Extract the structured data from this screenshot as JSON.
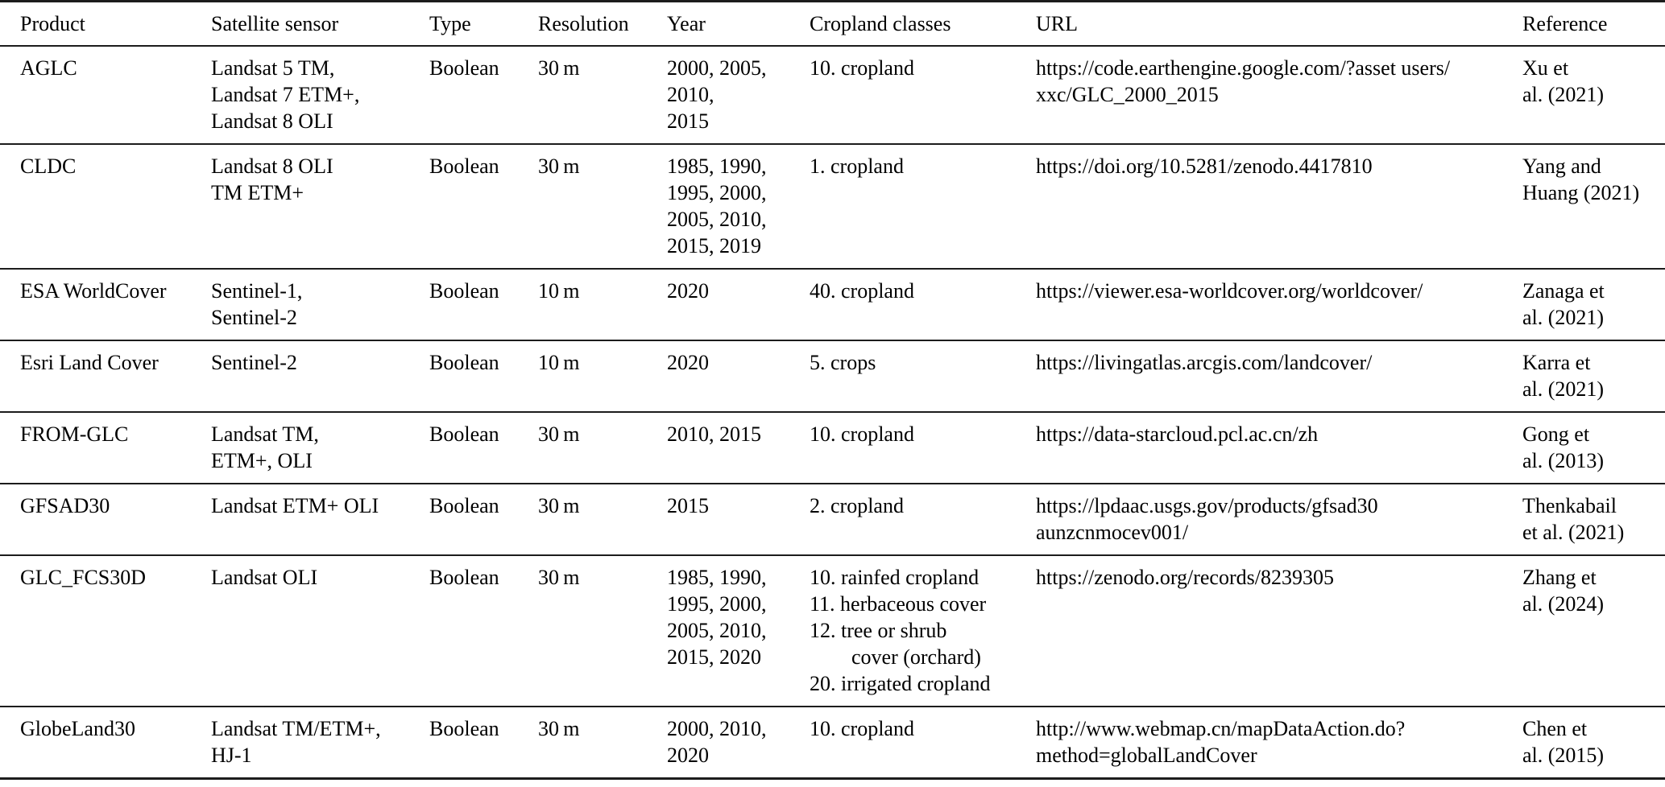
{
  "table": {
    "columns": [
      {
        "key": "product",
        "label": "Product"
      },
      {
        "key": "sensor",
        "label": "Satellite sensor"
      },
      {
        "key": "type",
        "label": "Type"
      },
      {
        "key": "resolution",
        "label": "Resolution"
      },
      {
        "key": "year",
        "label": "Year"
      },
      {
        "key": "classes",
        "label": "Cropland classes"
      },
      {
        "key": "url",
        "label": "URL"
      },
      {
        "key": "reference",
        "label": "Reference"
      }
    ],
    "rows": [
      {
        "product": "AGLC",
        "sensor": [
          "Landsat 5 TM,",
          "Landsat 7 ETM+,",
          "Landsat 8 OLI"
        ],
        "type": "Boolean",
        "resolution": "30 m",
        "year": [
          "2000, 2005,",
          "2010,",
          "2015"
        ],
        "classes": [
          "10. cropland"
        ],
        "url": [
          "https://code.earthengine.google.com/?asset users/",
          "xxc/GLC_2000_2015"
        ],
        "reference": [
          "Xu et",
          "al. (2021)"
        ]
      },
      {
        "product": "CLDC",
        "sensor": [
          "Landsat 8 OLI",
          "TM ETM+"
        ],
        "type": "Boolean",
        "resolution": "30 m",
        "year": [
          "1985, 1990,",
          "1995, 2000,",
          "2005, 2010,",
          "2015, 2019"
        ],
        "classes": [
          "1. cropland"
        ],
        "url": [
          "https://doi.org/10.5281/zenodo.4417810"
        ],
        "reference": [
          "Yang and",
          "Huang (2021)"
        ]
      },
      {
        "product": "ESA WorldCover",
        "sensor": [
          "Sentinel-1,",
          "Sentinel-2"
        ],
        "type": "Boolean",
        "resolution": "10 m",
        "year": [
          "2020"
        ],
        "classes": [
          "40. cropland"
        ],
        "url": [
          "https://viewer.esa-worldcover.org/worldcover/"
        ],
        "reference": [
          "Zanaga et",
          "al. (2021)"
        ]
      },
      {
        "product": "Esri Land Cover",
        "sensor": [
          "Sentinel-2"
        ],
        "type": "Boolean",
        "resolution": "10 m",
        "year": [
          "2020"
        ],
        "classes": [
          "5. crops"
        ],
        "url": [
          "https://livingatlas.arcgis.com/landcover/"
        ],
        "reference": [
          "Karra et",
          "al. (2021)"
        ]
      },
      {
        "product": "FROM-GLC",
        "sensor": [
          "Landsat TM,",
          "ETM+, OLI"
        ],
        "type": "Boolean",
        "resolution": "30 m",
        "year": [
          "2010, 2015"
        ],
        "classes": [
          "10. cropland"
        ],
        "url": [
          "https://data-starcloud.pcl.ac.cn/zh"
        ],
        "reference": [
          "Gong et",
          "al. (2013)"
        ]
      },
      {
        "product": "GFSAD30",
        "sensor": [
          "Landsat ETM+ OLI"
        ],
        "type": "Boolean",
        "resolution": "30 m",
        "year": [
          "2015"
        ],
        "classes": [
          "2. cropland"
        ],
        "url": [
          "https://lpdaac.usgs.gov/products/gfsad30",
          "aunzcnmocev001/"
        ],
        "reference": [
          "Thenkabail",
          "et al. (2021)"
        ]
      },
      {
        "product": "GLC_FCS30D",
        "sensor": [
          "Landsat OLI"
        ],
        "type": "Boolean",
        "resolution": "30 m",
        "year": [
          "1985, 1990,",
          "1995, 2000,",
          "2005, 2010,",
          "2015, 2020"
        ],
        "classes": [
          "10. rainfed cropland",
          "11. herbaceous cover",
          "12. tree or shrub",
          "        cover (orchard)",
          "20. irrigated cropland"
        ],
        "url": [
          "https://zenodo.org/records/8239305"
        ],
        "reference": [
          "Zhang et",
          "al. (2024)"
        ]
      },
      {
        "product": "GlobeLand30",
        "sensor": [
          "Landsat TM/ETM+,",
          "HJ-1"
        ],
        "type": "Boolean",
        "resolution": "30 m",
        "year": [
          "2000, 2010,",
          "2020"
        ],
        "classes": [
          "10. cropland"
        ],
        "url": [
          "http://www.webmap.cn/mapDataAction.do?",
          "method=globalLandCover"
        ],
        "reference": [
          "Chen et",
          "al. (2015)"
        ]
      }
    ]
  }
}
